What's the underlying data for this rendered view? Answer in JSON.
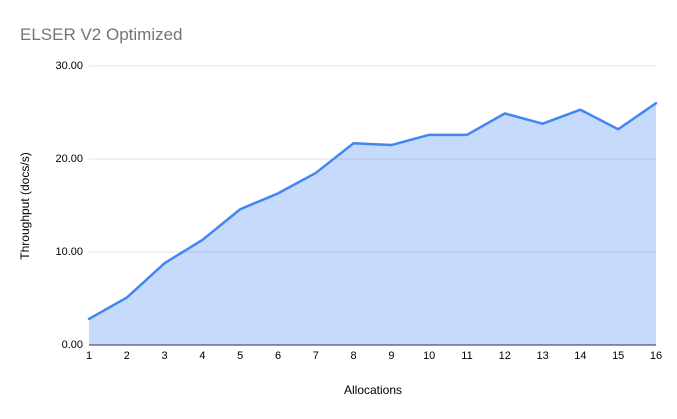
{
  "chart_data": {
    "type": "area",
    "title": "ELSER V2 Optimized",
    "xlabel": "Allocations",
    "ylabel": "Throughput (docs/s)",
    "categories": [
      "1",
      "2",
      "3",
      "4",
      "5",
      "6",
      "7",
      "8",
      "9",
      "10",
      "11",
      "12",
      "13",
      "14",
      "15",
      "16"
    ],
    "series": [
      {
        "name": "Throughput (docs/s)",
        "values": [
          2.8,
          5.1,
          8.8,
          11.3,
          14.6,
          16.3,
          18.5,
          21.7,
          21.5,
          22.6,
          22.6,
          24.9,
          23.8,
          25.3,
          23.2,
          26.0
        ]
      }
    ],
    "ylim": [
      0,
      30
    ],
    "yticks": [
      {
        "value": 0,
        "label": "0.00"
      },
      {
        "value": 10,
        "label": "10.00"
      },
      {
        "value": 20,
        "label": "20.00"
      },
      {
        "value": 30,
        "label": "30.00"
      }
    ],
    "grid": true,
    "legend": "none",
    "colors": {
      "line": "#4285f4",
      "fill": "rgba(66,133,244,0.30)",
      "grid": "#e3e3e3",
      "axis": "#333333",
      "title": "#757575",
      "tick_label": "#000000"
    }
  }
}
